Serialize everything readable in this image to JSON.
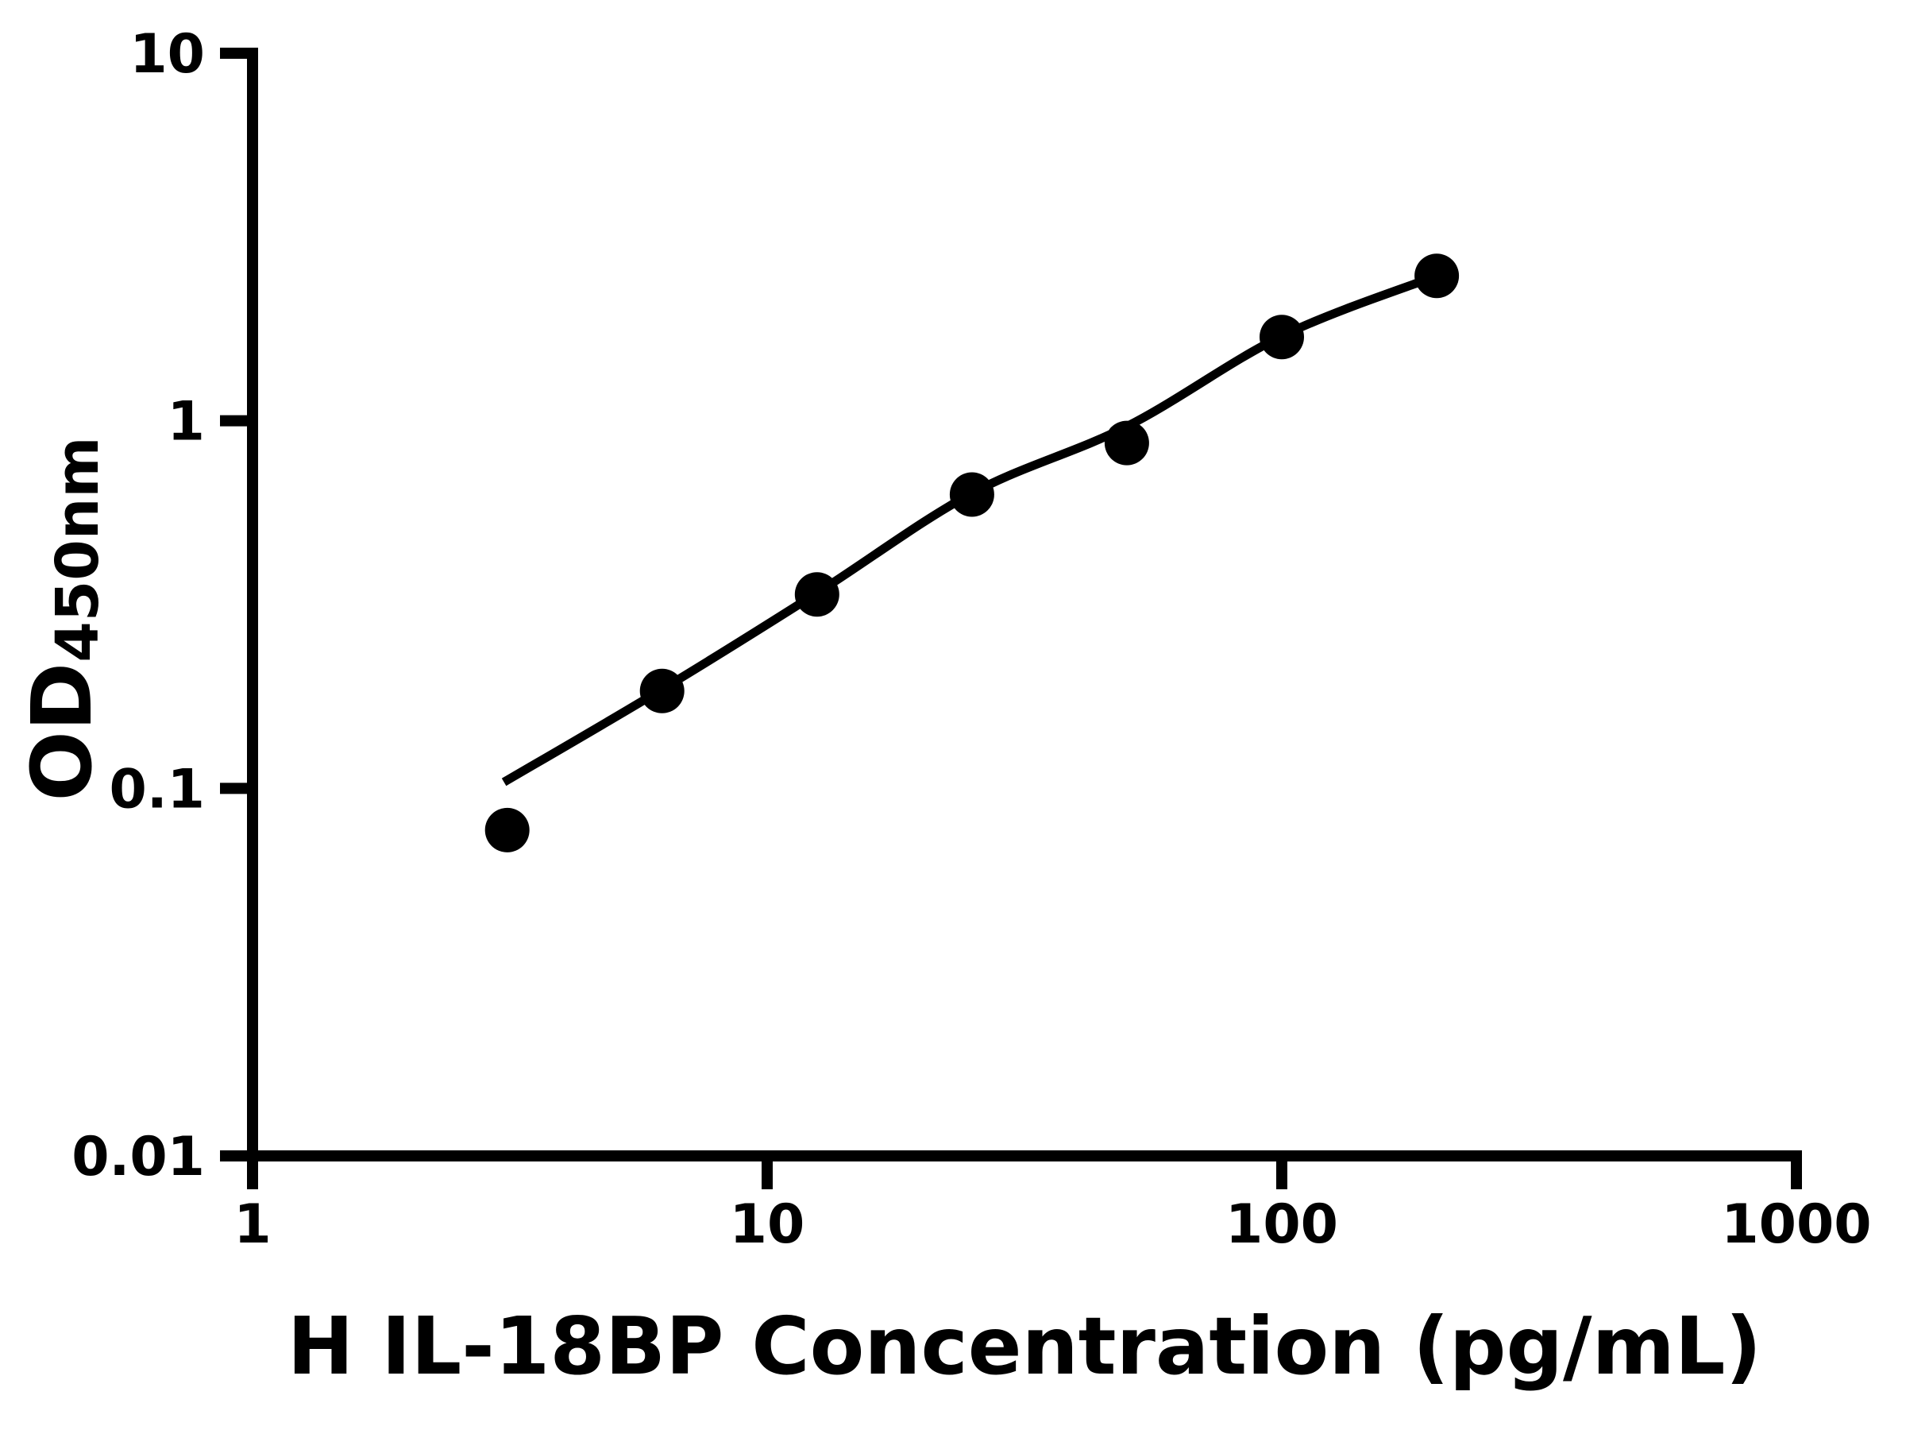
{
  "figure": {
    "background": "#ffffff",
    "ink": "#000000"
  },
  "chart_data": {
    "type": "scatter",
    "title": "",
    "xlabel": "H IL-18BP Concentration (pg/mL)",
    "ylabel_base": "OD",
    "ylabel_subscript": "450nm",
    "x_scale": "log",
    "y_scale": "log",
    "xlim": [
      1,
      1000
    ],
    "ylim": [
      0.01,
      10
    ],
    "grid": false,
    "legend_position": "none",
    "x_ticks": [
      {
        "value": 1,
        "label": "1"
      },
      {
        "value": 10,
        "label": "10"
      },
      {
        "value": 100,
        "label": "100"
      },
      {
        "value": 1000,
        "label": "1000"
      }
    ],
    "y_ticks": [
      {
        "value": 0.01,
        "label": "0.01"
      },
      {
        "value": 0.1,
        "label": "0.1"
      },
      {
        "value": 1,
        "label": "1"
      },
      {
        "value": 10,
        "label": "10"
      }
    ],
    "series": [
      {
        "marker": "filled-circle",
        "marker_color": "#000000",
        "points": [
          {
            "x": 3.125,
            "y": 0.077
          },
          {
            "x": 6.25,
            "y": 0.184
          },
          {
            "x": 12.5,
            "y": 0.337
          },
          {
            "x": 25,
            "y": 0.63
          },
          {
            "x": 50,
            "y": 0.87
          },
          {
            "x": 100,
            "y": 1.69
          },
          {
            "x": 200,
            "y": 2.48
          }
        ]
      }
    ],
    "fit_curve": {
      "style": "solid",
      "color": "#000000",
      "points": [
        {
          "x": 3.08,
          "y": 0.104
        },
        {
          "x": 6.25,
          "y": 0.186
        },
        {
          "x": 12.5,
          "y": 0.34
        },
        {
          "x": 25,
          "y": 0.635
        },
        {
          "x": 50,
          "y": 0.965
        },
        {
          "x": 100,
          "y": 1.7
        },
        {
          "x": 200,
          "y": 2.48
        }
      ]
    }
  }
}
